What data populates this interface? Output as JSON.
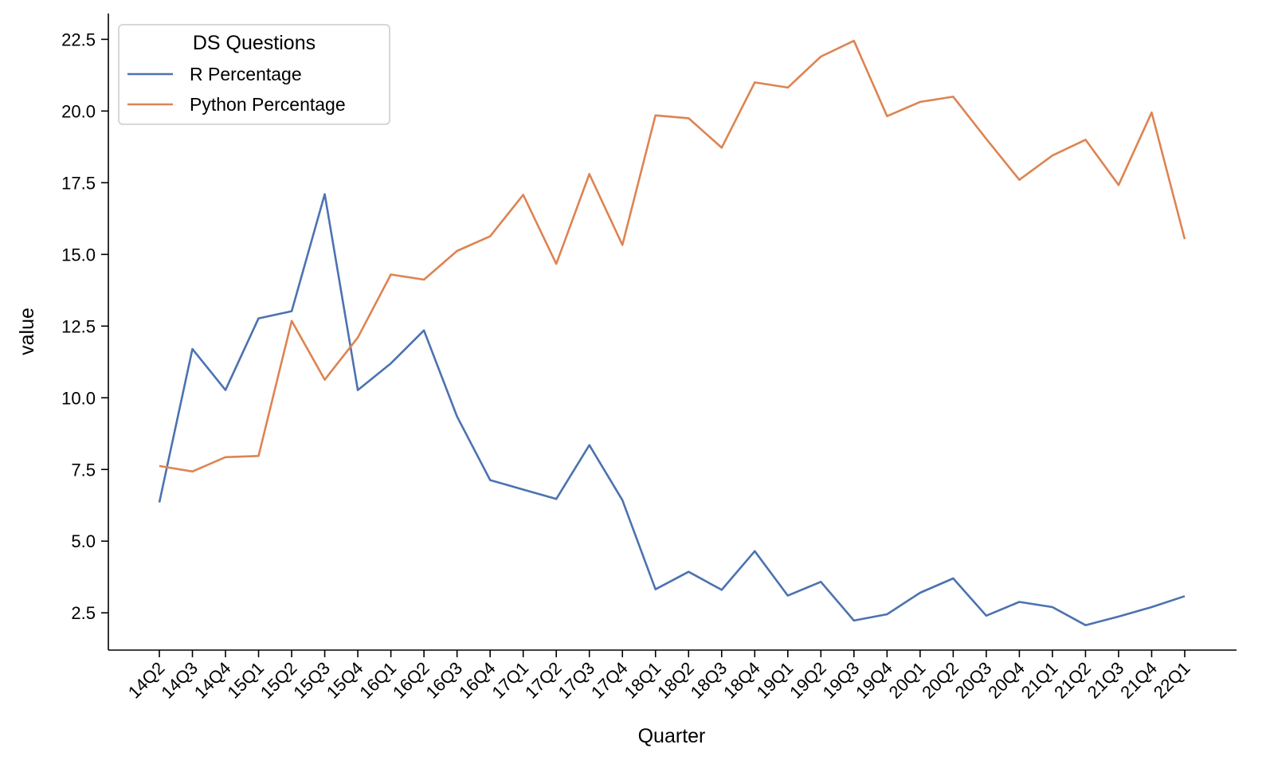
{
  "chart_data": {
    "type": "line",
    "title": "",
    "xlabel": "Quarter",
    "ylabel": "value",
    "ylim": [
      1.2,
      23.4
    ],
    "yticks": [
      2.5,
      5.0,
      7.5,
      10.0,
      12.5,
      15.0,
      17.5,
      20.0,
      22.5
    ],
    "ytick_labels": [
      "2.5",
      "5.0",
      "7.5",
      "10.0",
      "12.5",
      "15.0",
      "17.5",
      "20.0",
      "22.5"
    ],
    "grid": false,
    "legend": {
      "title": "DS Questions",
      "position": "top-left"
    },
    "categories": [
      "14Q2",
      "14Q3",
      "14Q4",
      "15Q1",
      "15Q2",
      "15Q3",
      "15Q4",
      "16Q1",
      "16Q2",
      "16Q3",
      "16Q4",
      "17Q1",
      "17Q2",
      "17Q3",
      "17Q4",
      "18Q1",
      "18Q2",
      "18Q3",
      "18Q4",
      "19Q1",
      "19Q2",
      "19Q3",
      "19Q4",
      "20Q1",
      "20Q2",
      "20Q3",
      "20Q4",
      "21Q1",
      "21Q2",
      "21Q3",
      "21Q4",
      "22Q1"
    ],
    "series": [
      {
        "name": "R Percentage",
        "color": "#4c72b0",
        "values": [
          6.35,
          11.7,
          10.27,
          12.77,
          13.02,
          17.1,
          10.27,
          11.2,
          12.35,
          9.35,
          7.13,
          6.8,
          6.47,
          8.35,
          6.43,
          3.32,
          3.93,
          3.3,
          4.65,
          3.1,
          3.58,
          2.23,
          2.45,
          3.2,
          3.7,
          2.4,
          2.88,
          2.7,
          2.07,
          2.37,
          2.7,
          3.08
        ]
      },
      {
        "name": "Python Percentage",
        "color": "#dd8452",
        "values": [
          7.62,
          7.43,
          7.93,
          7.97,
          12.68,
          10.63,
          12.1,
          14.3,
          14.12,
          15.12,
          15.63,
          17.08,
          14.67,
          17.8,
          15.33,
          19.85,
          19.75,
          18.72,
          21.0,
          20.82,
          21.9,
          22.45,
          19.82,
          20.32,
          20.5,
          19.03,
          17.6,
          18.45,
          19.0,
          17.42,
          19.95,
          15.53
        ]
      }
    ]
  }
}
